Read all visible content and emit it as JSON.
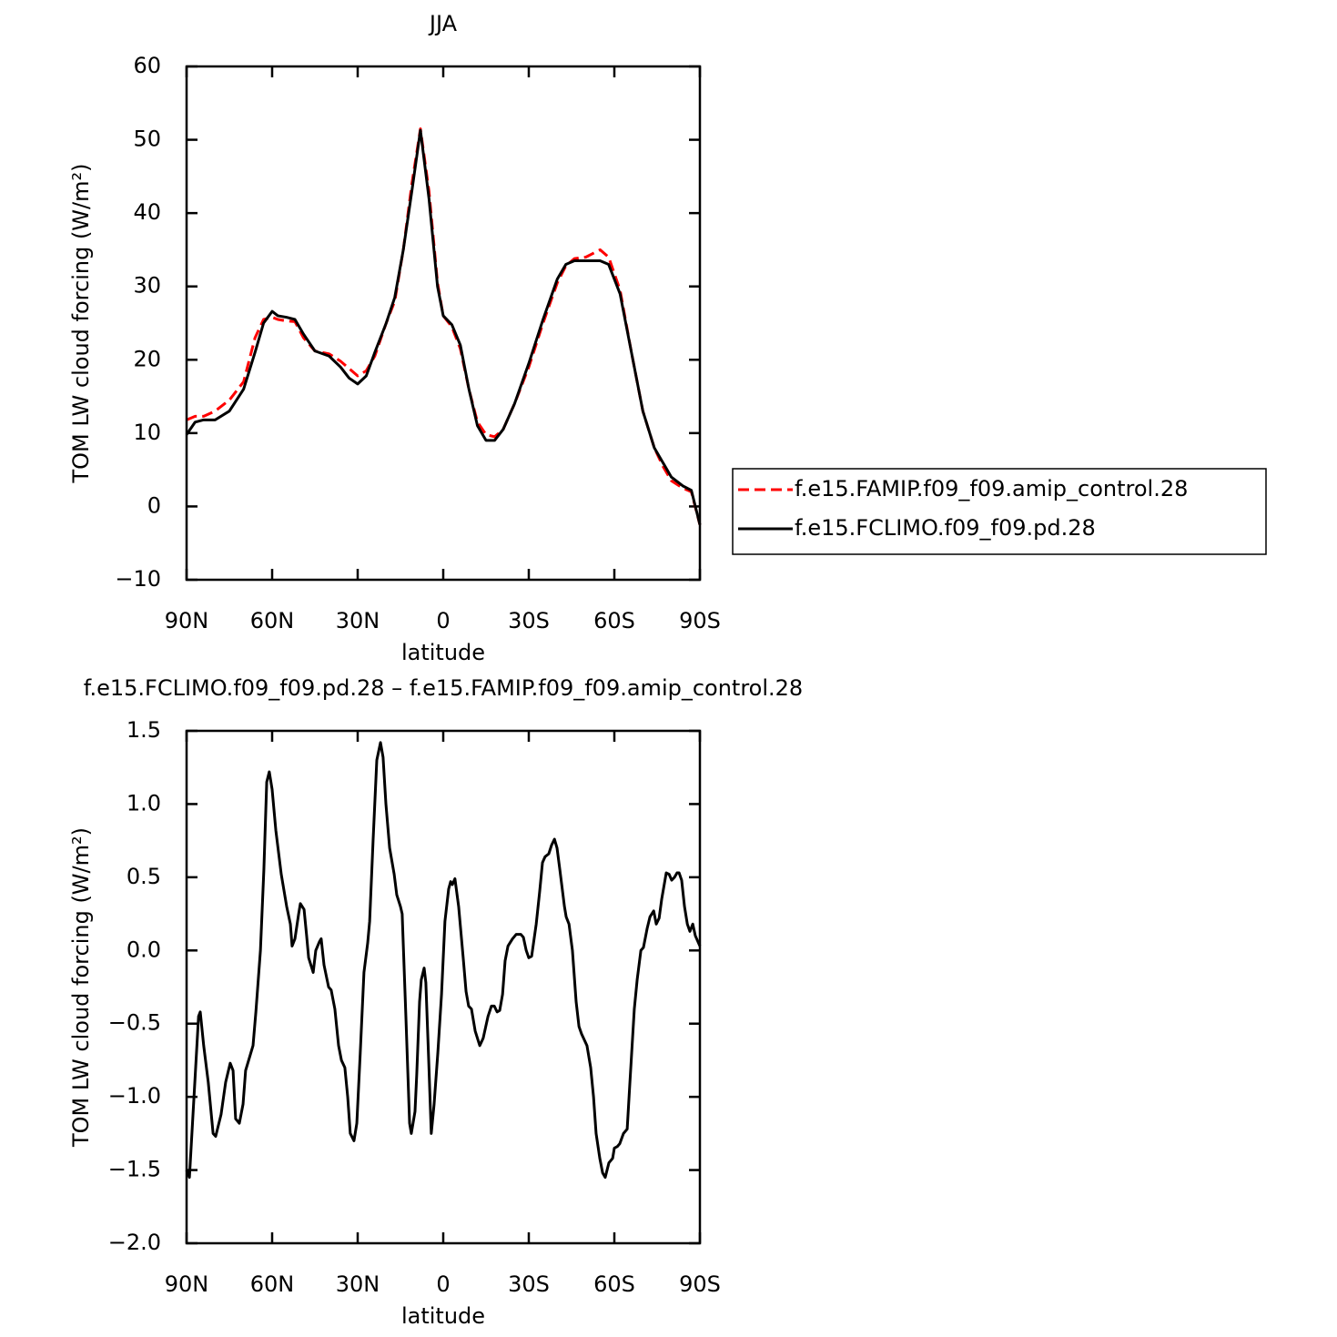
{
  "chart_data": [
    {
      "type": "line",
      "title": "JJA",
      "xlabel": "latitude",
      "ylabel": "TOM LW cloud forcing (W/m²)",
      "x": [
        90,
        87,
        84,
        80,
        75,
        70,
        66,
        63,
        60,
        58,
        55,
        52,
        49,
        45,
        40,
        36,
        33,
        30,
        27,
        24,
        20,
        17,
        14,
        11,
        8,
        5,
        2,
        0,
        -3,
        -6,
        -9,
        -12,
        -15,
        -18,
        -21,
        -25,
        -30,
        -35,
        -40,
        -43,
        -46,
        -50,
        -55,
        -58,
        -62,
        -66,
        -70,
        -74,
        -77,
        -80,
        -84,
        -87,
        -90
      ],
      "series": [
        {
          "name": "f.e15.FAMIP.f09_f09.amip_control.28",
          "color": "#ff0000",
          "dash": "dashed",
          "values": [
            11.8,
            12.3,
            12.3,
            13,
            14.5,
            17,
            23,
            25.5,
            25.8,
            25.5,
            25.3,
            25.2,
            23,
            21.2,
            20.8,
            19.8,
            18.8,
            17.8,
            18.5,
            20.5,
            25,
            28,
            35,
            44,
            51.5,
            43,
            30.5,
            26,
            24.5,
            21.5,
            16,
            11.5,
            9.8,
            9.5,
            10.5,
            14,
            19,
            25,
            30.5,
            32.8,
            33.8,
            34,
            35,
            34,
            29.5,
            21,
            13,
            8,
            5.5,
            3.5,
            2.5,
            2,
            -2.5
          ]
        },
        {
          "name": "f.e15.FCLIMO.f09_f09.pd.28",
          "color": "#000000",
          "dash": "solid",
          "values": [
            9.8,
            11.5,
            11.8,
            11.8,
            13,
            16,
            21,
            25,
            26.6,
            26,
            25.8,
            25.5,
            23.5,
            21.2,
            20.5,
            19,
            17.5,
            16.7,
            17.8,
            21,
            25,
            28.5,
            35,
            43,
            51.3,
            42,
            30,
            26,
            24.8,
            22,
            16,
            11,
            9,
            9,
            10.5,
            14,
            19.5,
            25.5,
            31,
            33,
            33.5,
            33.5,
            33.5,
            33,
            29,
            21,
            13,
            8,
            6,
            4,
            2.8,
            2.2,
            -2.5
          ]
        }
      ],
      "xlim": [
        90,
        -90
      ],
      "xticks": [
        {
          "value": 90,
          "label": "90N"
        },
        {
          "value": 60,
          "label": "60N"
        },
        {
          "value": 30,
          "label": "30N"
        },
        0,
        {
          "value": -30,
          "label": "30S"
        },
        {
          "value": -60,
          "label": "60S"
        },
        {
          "value": -90,
          "label": "90S"
        }
      ],
      "ylim": [
        -10,
        60
      ],
      "yticks": [
        {
          "value": -10,
          "label": "−10"
        },
        0,
        10,
        20,
        30,
        40,
        50,
        60
      ],
      "legend": "right"
    },
    {
      "type": "line",
      "title": "f.e15.FCLIMO.f09_f09.pd.28 – f.e15.FAMIP.f09_f09.amip_control.28",
      "xlabel": "latitude",
      "ylabel": "TOM LW cloud forcing (W/m²)",
      "x": [
        90,
        89,
        87.4,
        85.8,
        85.2,
        84,
        82.4,
        80.7,
        79.8,
        77.9,
        76.3,
        74.7,
        73.7,
        72.8,
        71.5,
        70.2,
        69.3,
        66.7,
        65.7,
        64.1,
        62.9,
        61.9,
        61,
        60,
        58.7,
        56.8,
        54.9,
        53.6,
        53,
        52,
        50.7,
        50.1,
        48.8,
        47.9,
        47.2,
        45.6,
        44.7,
        43.4,
        42.8,
        41.8,
        40.2,
        39.3,
        38,
        36.7,
        35.7,
        34.5,
        33.5,
        32.6,
        31.3,
        30.3,
        29.1,
        27.8,
        26.5,
        25.8,
        24.6,
        23.3,
        22,
        21.1,
        20.1,
        18.8,
        17.2,
        16.3,
        15,
        14.4,
        13.1,
        11.8,
        11.2,
        9.9,
        9.3,
        8.3,
        7.7,
        6.7,
        6.1,
        5.1,
        4.2,
        3.2,
        1.9,
        0.6,
        -0.6,
        -1.9,
        -2.6,
        -3.2,
        -4.1,
        -5.4,
        -7,
        -8,
        -8.9,
        -9.9,
        -11.2,
        -12.8,
        -14,
        -15.7,
        -16.9,
        -17.9,
        -18.9,
        -19.8,
        -20.8,
        -21.7,
        -22.7,
        -24.3,
        -25.6,
        -27.2,
        -28.1,
        -29.1,
        -30,
        -31,
        -32.6,
        -33.8,
        -34.8,
        -35.7,
        -37,
        -38,
        -39,
        -39.9,
        -40.9,
        -42.5,
        -43.1,
        -44.1,
        -45.3,
        -46.6,
        -47.6,
        -48.5,
        -50.4,
        -51.7,
        -52.7,
        -53.6,
        -54.9,
        -55.9,
        -56.8,
        -58.1,
        -59.4,
        -60,
        -61,
        -61.9,
        -63.2,
        -64.5,
        -65.4,
        -67,
        -68,
        -69.3,
        -70.2,
        -71.5,
        -72.5,
        -73.8,
        -74.7,
        -75.7,
        -76.6,
        -78.2,
        -79.2,
        -80.1,
        -81.1,
        -82,
        -82.7,
        -83.6,
        -84.6,
        -85.6,
        -86.5,
        -87.5,
        -88.4,
        -90
      ],
      "series": [
        {
          "color": "#000000",
          "dash": "solid",
          "values": [
            -1.5,
            -1.55,
            -1.0,
            -0.45,
            -0.42,
            -0.65,
            -0.9,
            -1.25,
            -1.27,
            -1.12,
            -0.9,
            -0.77,
            -0.82,
            -1.15,
            -1.18,
            -1.05,
            -0.82,
            -0.65,
            -0.42,
            0.0,
            0.55,
            1.15,
            1.22,
            1.1,
            0.82,
            0.52,
            0.3,
            0.18,
            0.03,
            0.08,
            0.25,
            0.32,
            0.28,
            0.1,
            -0.05,
            -0.15,
            0.0,
            0.06,
            0.08,
            -0.1,
            -0.25,
            -0.27,
            -0.4,
            -0.65,
            -0.75,
            -0.8,
            -1.0,
            -1.25,
            -1.3,
            -1.18,
            -0.7,
            -0.15,
            0.05,
            0.2,
            0.75,
            1.3,
            1.42,
            1.32,
            1.0,
            0.7,
            0.52,
            0.38,
            0.3,
            0.25,
            -0.45,
            -1.18,
            -1.25,
            -1.1,
            -0.85,
            -0.35,
            -0.2,
            -0.12,
            -0.22,
            -0.75,
            -1.25,
            -1.05,
            -0.7,
            -0.3,
            0.2,
            0.42,
            0.47,
            0.45,
            0.49,
            0.3,
            -0.05,
            -0.28,
            -0.38,
            -0.4,
            -0.55,
            -0.65,
            -0.6,
            -0.45,
            -0.38,
            -0.38,
            -0.42,
            -0.41,
            -0.3,
            -0.07,
            0.03,
            0.08,
            0.11,
            0.11,
            0.09,
            0.0,
            -0.05,
            -0.04,
            0.18,
            0.4,
            0.6,
            0.64,
            0.66,
            0.72,
            0.76,
            0.7,
            0.55,
            0.3,
            0.23,
            0.18,
            0.0,
            -0.35,
            -0.52,
            -0.57,
            -0.65,
            -0.8,
            -1.0,
            -1.25,
            -1.42,
            -1.52,
            -1.55,
            -1.45,
            -1.42,
            -1.35,
            -1.34,
            -1.32,
            -1.25,
            -1.22,
            -0.92,
            -0.4,
            -0.2,
            0.0,
            0.02,
            0.15,
            0.23,
            0.27,
            0.18,
            0.22,
            0.35,
            0.53,
            0.52,
            0.48,
            0.5,
            0.53,
            0.53,
            0.48,
            0.3,
            0.18,
            0.13,
            0.18,
            0.1,
            0.03
          ]
        }
      ],
      "xlim": [
        90,
        -90
      ],
      "xticks": [
        {
          "value": 90,
          "label": "90N"
        },
        {
          "value": 60,
          "label": "60N"
        },
        {
          "value": 30,
          "label": "30N"
        },
        0,
        {
          "value": -30,
          "label": "30S"
        },
        {
          "value": -60,
          "label": "60S"
        },
        {
          "value": -90,
          "label": "90S"
        }
      ],
      "ylim": [
        -2,
        1.5
      ],
      "yticks": [
        {
          "value": -2,
          "label": "−2.0"
        },
        {
          "value": -1.5,
          "label": "−1.5"
        },
        {
          "value": -1,
          "label": "−1.0"
        },
        {
          "value": -0.5,
          "label": "−0.5"
        },
        {
          "value": 0,
          "label": "0.0"
        },
        0.5,
        {
          "value": 1,
          "label": "1.0"
        },
        1.5
      ]
    }
  ]
}
